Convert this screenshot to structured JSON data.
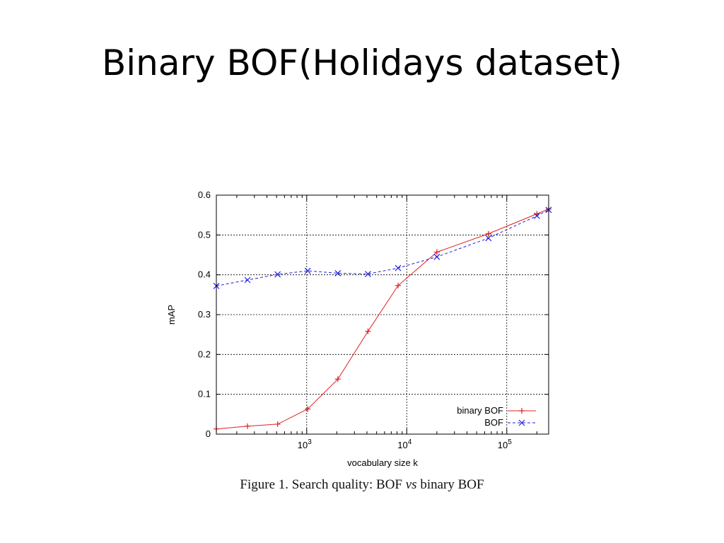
{
  "slide": {
    "title": "Binary BOF(Holidays dataset)"
  },
  "caption": {
    "prefix": "Figure 1. Search quality: BOF ",
    "italic": "vs",
    "suffix": " binary BOF"
  },
  "colors": {
    "binary_bof": "#e02020",
    "bof": "#2020e0",
    "grid": "#000000"
  },
  "chart_data": {
    "type": "line",
    "xlabel": "vocabulary size k",
    "ylabel": "mAP",
    "xscale": "log",
    "xlim": [
      125,
      262144
    ],
    "ylim": [
      0,
      0.6
    ],
    "y_ticks": [
      "0",
      "0.1",
      "0.2",
      "0.3",
      "0.4",
      "0.5",
      "0.6"
    ],
    "x_ticks": [
      {
        "value": 1000,
        "base": "10",
        "exp": "3"
      },
      {
        "value": 10000,
        "base": "10",
        "exp": "4"
      },
      {
        "value": 100000,
        "base": "10",
        "exp": "5"
      }
    ],
    "grid": true,
    "legend_position": "bottom-right",
    "series": [
      {
        "name": "binary BOF",
        "marker": "plus",
        "linestyle": "solid",
        "x": [
          125,
          256,
          512,
          1024,
          2048,
          4096,
          8192,
          20000,
          65536,
          200000,
          262144
        ],
        "y": [
          0.013,
          0.02,
          0.025,
          0.063,
          0.138,
          0.258,
          0.373,
          0.457,
          0.503,
          0.553,
          0.565
        ]
      },
      {
        "name": "BOF",
        "marker": "cross",
        "linestyle": "dashed",
        "x": [
          125,
          256,
          512,
          1024,
          2048,
          4096,
          8192,
          20000,
          65536,
          200000,
          262144
        ],
        "y": [
          0.372,
          0.387,
          0.401,
          0.41,
          0.404,
          0.402,
          0.417,
          0.445,
          0.492,
          0.548,
          0.563
        ]
      }
    ]
  }
}
